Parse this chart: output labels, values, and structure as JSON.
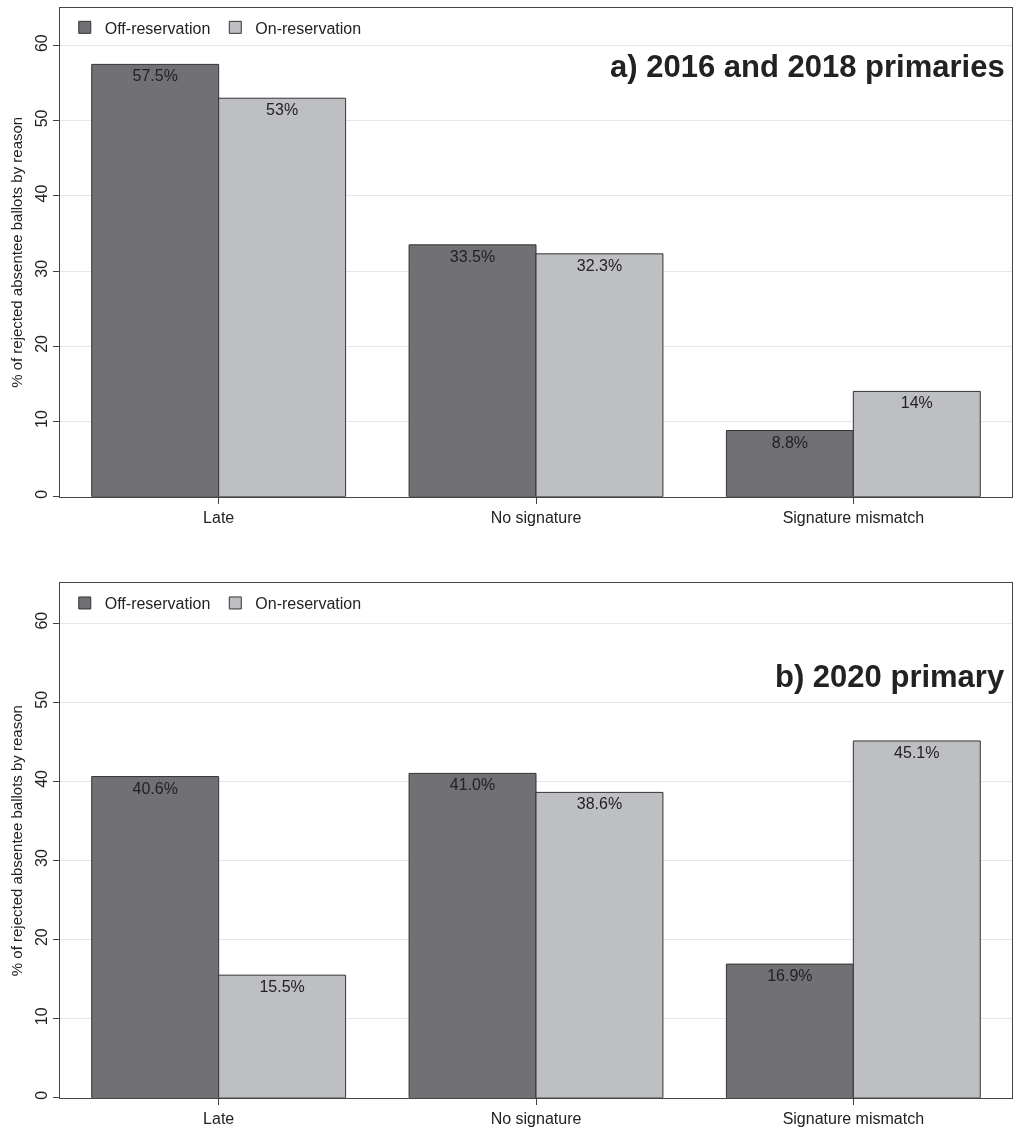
{
  "chart_data": [
    {
      "type": "bar",
      "title": "a) 2016 and 2018 primaries",
      "ylabel": "% of rejected absentee ballots by reason",
      "categories": [
        "Late",
        "No signature",
        "Signature mismatch"
      ],
      "series": [
        {
          "name": "Off-reservation",
          "color": "#707075",
          "values": [
            57.5,
            33.5,
            8.8
          ],
          "value_labels": [
            "57.5%",
            "33.5%",
            "8.8%"
          ]
        },
        {
          "name": "On-reservation",
          "color": "#bebfc3",
          "values": [
            53,
            32.3,
            14
          ],
          "value_labels": [
            "53%",
            "32.3%",
            "14%"
          ]
        }
      ],
      "ylim": [
        0,
        65
      ],
      "yticks": [
        0,
        10,
        20,
        30,
        40,
        50,
        60
      ],
      "grid": "y",
      "legend": "top left"
    },
    {
      "type": "bar",
      "title": "b) 2020 primary",
      "ylabel": "% of rejected absentee ballots by reason",
      "categories": [
        "Late",
        "No signature",
        "Signature mismatch"
      ],
      "series": [
        {
          "name": "Off-reservation",
          "color": "#707075",
          "values": [
            40.6,
            41.0,
            16.9
          ],
          "value_labels": [
            "40.6%",
            "41.0%",
            "16.9%"
          ]
        },
        {
          "name": "On-reservation",
          "color": "#bebfc3",
          "values": [
            15.5,
            38.6,
            45.1
          ],
          "value_labels": [
            "15.5%",
            "38.6%",
            "45.1%"
          ]
        }
      ],
      "ylim": [
        0,
        65
      ],
      "yticks": [
        0,
        10,
        20,
        30,
        40,
        50,
        60
      ],
      "grid": "y",
      "legend": "top left"
    }
  ]
}
